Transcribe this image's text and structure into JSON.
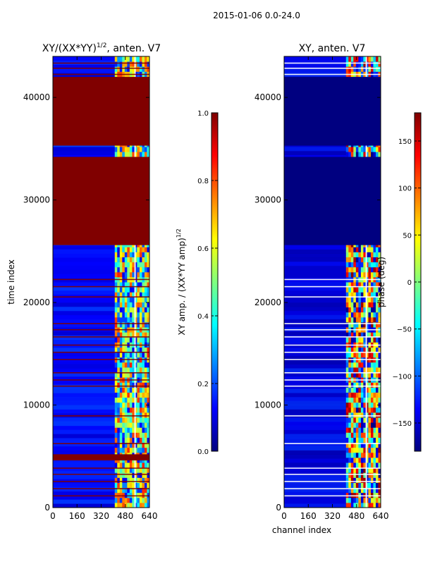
{
  "figure": {
    "suptitle": "2015-01-06 0.0-24.0"
  },
  "colors": {
    "background": "#ffffff",
    "axis": "#000000",
    "phase_blue": "#00007f",
    "amp_red": "#7f0000"
  },
  "chart_data": [
    {
      "type": "heatmap",
      "title_main": "XY/(XX*YY)",
      "title_exp": "1/2",
      "title_suffix": ", anten. V7",
      "xlabel": "",
      "ylabel": "time index",
      "xlim": [
        0,
        640
      ],
      "ylim": [
        0,
        44000
      ],
      "xticks": [
        "0",
        "160",
        "320",
        "480",
        "640"
      ],
      "yticks": [
        "0",
        "10000",
        "20000",
        "30000",
        "40000"
      ],
      "colormap": "jet",
      "colorbar": {
        "label_main": "XY amp. / (XX*YY amp)",
        "label_exp": "1/2",
        "vmin": 0.0,
        "vmax": 1.0,
        "ticks": [
          "0.0",
          "0.2",
          "0.4",
          "0.6",
          "0.8",
          "1.0"
        ]
      },
      "saturated_bands": [
        [
          4600,
          5200
        ],
        [
          25600,
          34200
        ],
        [
          35300,
          42000
        ]
      ],
      "active_channel_range": [
        410,
        640
      ],
      "flag_value": 1.0,
      "background_value": 0.12
    },
    {
      "type": "heatmap",
      "title_main": "XY, anten. V7",
      "title_exp": "",
      "title_suffix": "",
      "xlabel": "channel index",
      "ylabel": "",
      "xlim": [
        0,
        640
      ],
      "ylim": [
        0,
        44000
      ],
      "xticks": [
        "0",
        "160",
        "320",
        "480",
        "640"
      ],
      "yticks": [
        "0",
        "10000",
        "20000",
        "30000",
        "40000"
      ],
      "colormap": "jet",
      "colorbar": {
        "label_main": "phase (deg)",
        "label_exp": "",
        "vmin": -180,
        "vmax": 180,
        "ticks": [
          "−150",
          "−100",
          "−50",
          "0",
          "50",
          "100",
          "150"
        ]
      },
      "saturated_bands": [
        [
          25600,
          34200
        ],
        [
          35300,
          42000
        ]
      ],
      "active_channel_range": [
        410,
        640
      ],
      "flag_value": -180,
      "background_value": -150
    }
  ]
}
